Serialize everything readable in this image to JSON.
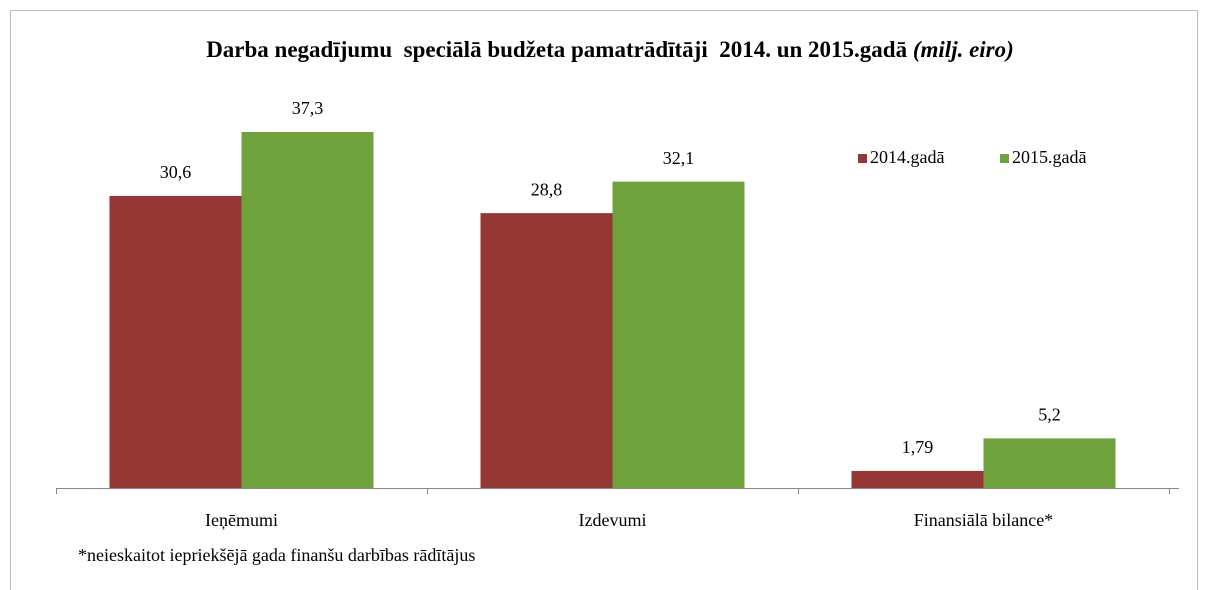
{
  "chart_data": {
    "type": "bar",
    "title": "Darba negadījumu  speciālā budžeta pamatrādītāji  2014. un 2015.gadā",
    "title_unit": "(milj. eiro)",
    "footnote": "*neieskaitot iepriekšējā gada finanšu darbības rādītājus",
    "categories": [
      "Ieņēmumi",
      "Izdevumi",
      "Finansiālā bilance*"
    ],
    "series": [
      {
        "name": "2014.gadā",
        "color": "#953735",
        "values": [
          30.6,
          28.8,
          1.79
        ],
        "value_labels": [
          "30,6",
          "28,8",
          "1,79"
        ]
      },
      {
        "name": "2015.gadā",
        "color": "#6fa23d",
        "values": [
          37.3,
          32.1,
          5.2
        ],
        "value_labels": [
          "37,3",
          "32,1",
          "5,2"
        ]
      }
    ],
    "legend": "top-right"
  }
}
